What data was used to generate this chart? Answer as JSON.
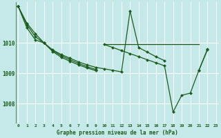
{
  "title": "Graphe pression niveau de la mer (hPa)",
  "bg_color": "#c5e8e8",
  "grid_color": "#ffffff",
  "line_color": "#1a5c1a",
  "x_ticks": [
    0,
    1,
    2,
    3,
    4,
    5,
    6,
    7,
    8,
    9,
    10,
    11,
    12,
    13,
    14,
    15,
    16,
    17,
    18,
    19,
    20,
    21,
    22,
    23
  ],
  "yticks": [
    1008,
    1009,
    1010
  ],
  "ylim": [
    1007.35,
    1011.35
  ],
  "xlim": [
    -0.3,
    23.3
  ],
  "series": {
    "s1": [
      1011.2,
      1010.65,
      1010.3,
      1010.0,
      1009.77,
      1009.62,
      1009.5,
      1009.38,
      1009.28,
      1009.2,
      1009.15,
      1009.1,
      1009.05,
      1011.05,
      1009.85,
      1009.7,
      1009.55,
      1009.42,
      null,
      null,
      null,
      1009.1,
      1009.8,
      null
    ],
    "s2": [
      1011.2,
      1010.6,
      1010.2,
      1010.0,
      1009.75,
      1009.58,
      1009.45,
      1009.33,
      1009.22,
      1009.13,
      null,
      null,
      null,
      null,
      null,
      null,
      null,
      null,
      null,
      null,
      null,
      null,
      null,
      null
    ],
    "s3": [
      1011.2,
      1010.5,
      1010.1,
      1010.0,
      1009.72,
      1009.53,
      1009.4,
      1009.28,
      1009.18,
      1009.09,
      null,
      null,
      null,
      null,
      null,
      null,
      null,
      null,
      null,
      null,
      null,
      null,
      null,
      null
    ],
    "s4_flat": [
      null,
      null,
      null,
      null,
      null,
      null,
      null,
      null,
      null,
      null,
      1009.95,
      1009.95,
      1009.95,
      1009.95,
      1009.95,
      1009.95,
      1009.95,
      1009.95,
      1009.95,
      1009.95,
      1009.95,
      1009.95,
      null,
      null
    ],
    "s5": [
      null,
      null,
      null,
      null,
      null,
      null,
      null,
      null,
      null,
      null,
      1009.95,
      1009.85,
      1009.75,
      1009.65,
      1009.55,
      1009.45,
      1009.35,
      1009.25,
      1007.73,
      1008.28,
      1008.35,
      1009.1,
      1009.78,
      null
    ]
  },
  "marker_size": 2.2,
  "line_width": 0.9,
  "tick_fontsize": 4.5,
  "label_fontsize": 5.5
}
